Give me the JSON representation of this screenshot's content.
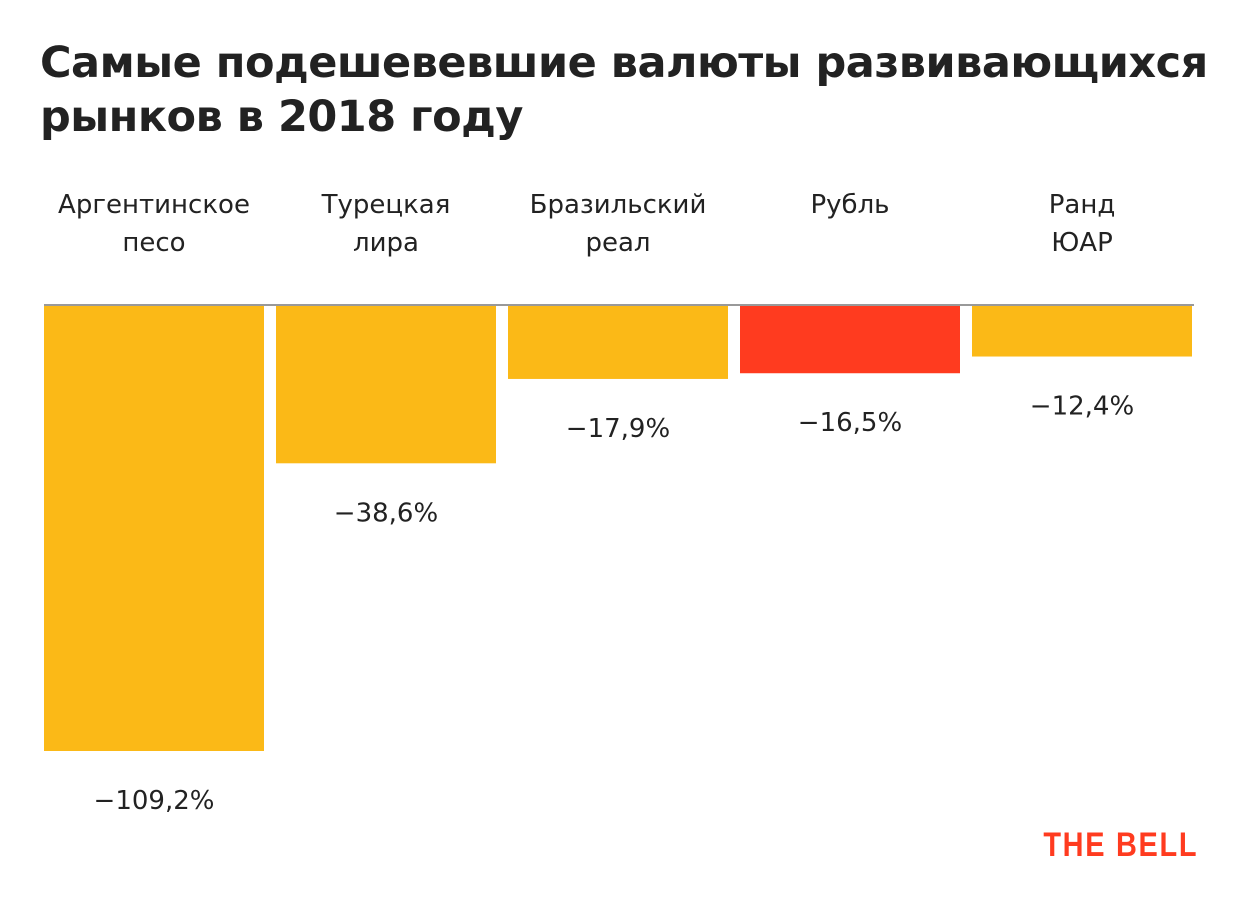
{
  "chart_data": {
    "type": "bar",
    "title": "Самые подешевевшие валюты развивающихся рынков в 2018 году",
    "categories": [
      [
        "Аргентинское",
        "песо"
      ],
      [
        "Турецкая",
        "лира"
      ],
      [
        "Бразильский",
        "реал"
      ],
      [
        "Рубль"
      ],
      [
        "Ранд",
        "ЮАР"
      ]
    ],
    "values": [
      -109.2,
      -38.6,
      -17.9,
      -16.5,
      -12.4
    ],
    "value_labels": [
      "−109,2%",
      "−38,6%",
      "−17,9%",
      "−16,5%",
      "−12,4%"
    ],
    "highlight_index": 3,
    "xlabel": "",
    "ylabel": "",
    "ylim": [
      -109.2,
      0
    ],
    "grid": false,
    "colors": {
      "default": "#fbb917",
      "highlight": "#ff3b1f",
      "baseline": "#999999",
      "text": "#222222"
    }
  },
  "source_logo": "THE BELL"
}
